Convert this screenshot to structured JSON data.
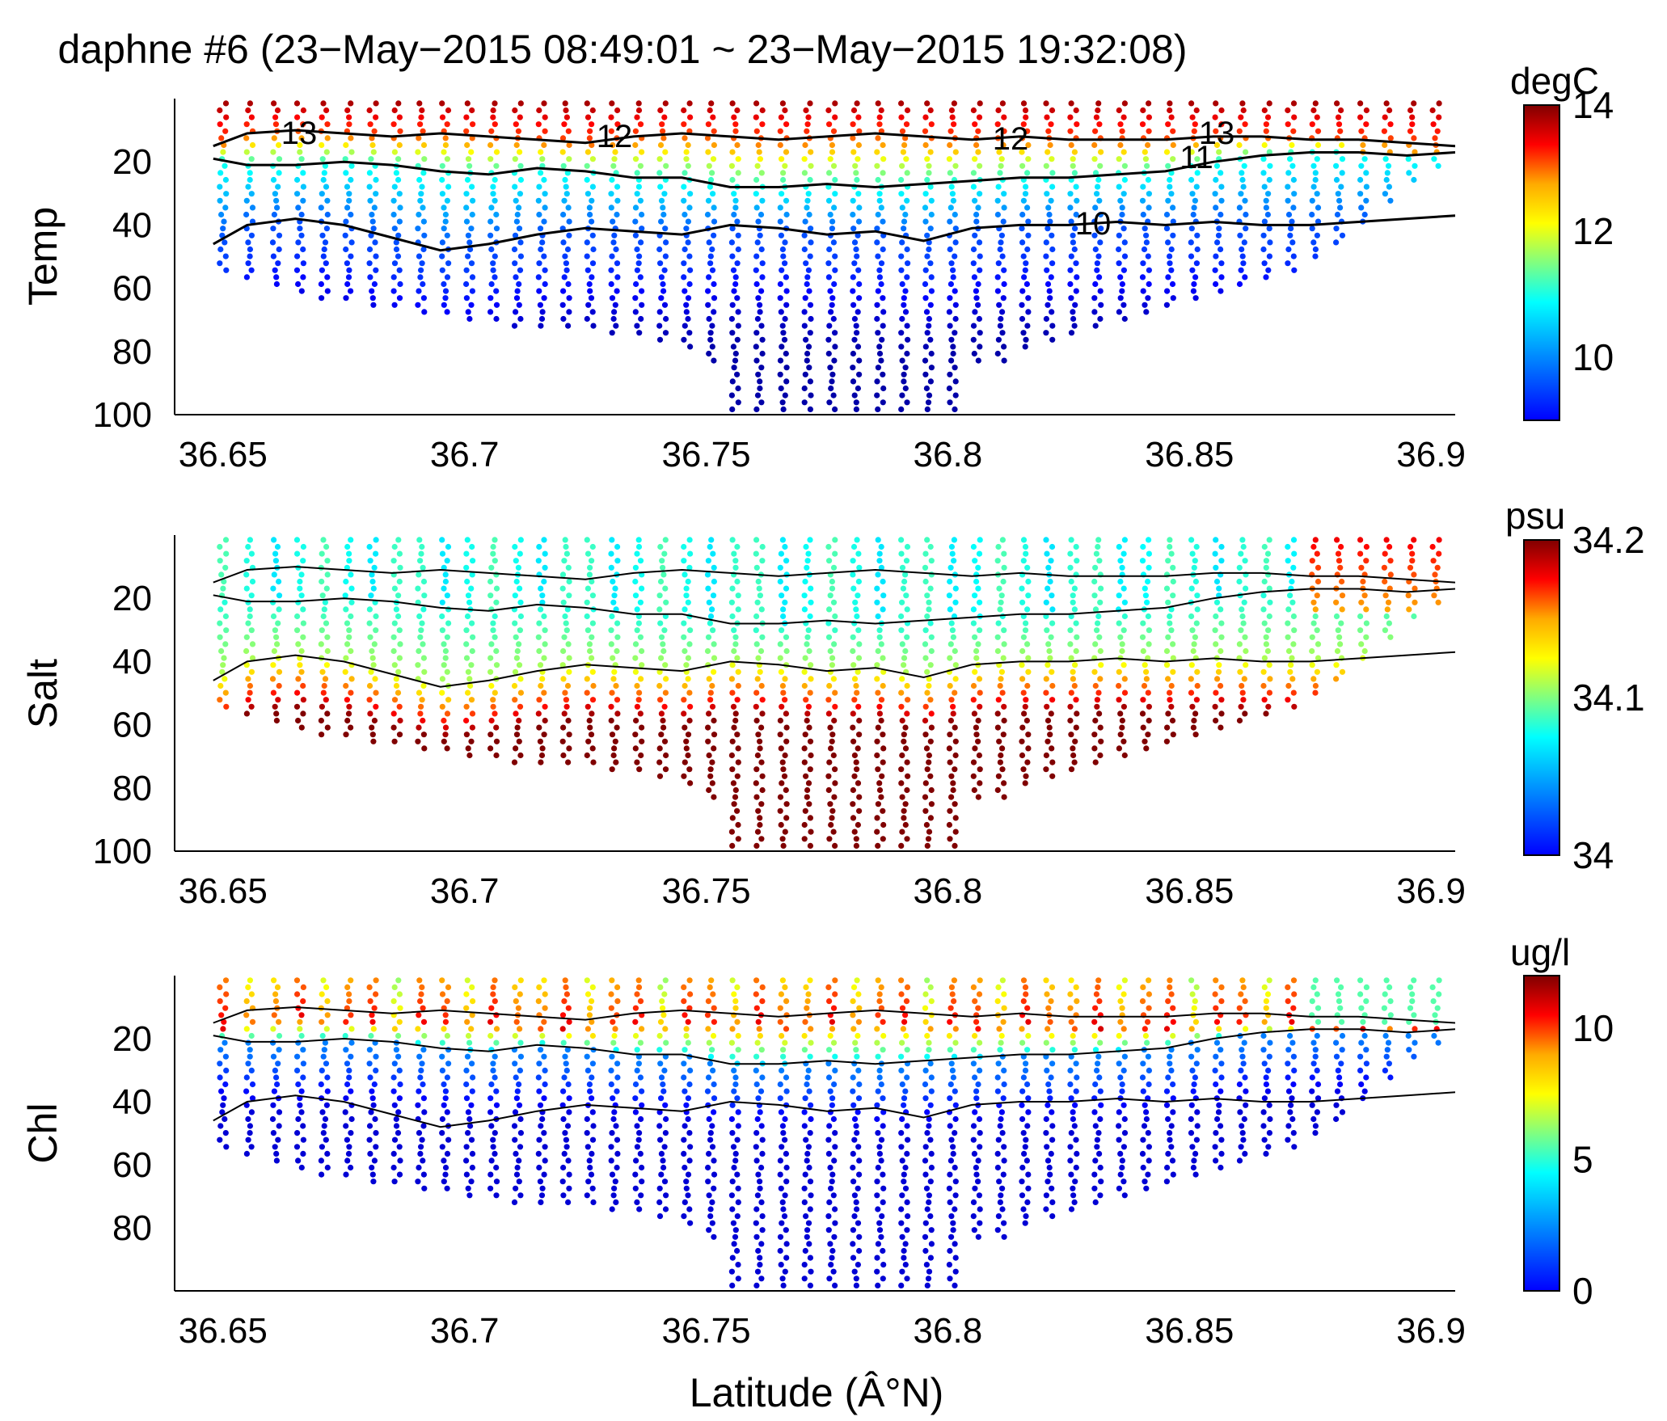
{
  "title": "daphne #6 (23−May−2015 08:49:01 ~ 23−May−2015 19:32:08)",
  "xlabel": "Latitude (Â°N)",
  "chart_data": [
    {
      "type": "scatter",
      "variable": "temperature",
      "ylabel": "Temp",
      "xlim": [
        36.64,
        36.905
      ],
      "ylim": [
        0,
        100
      ],
      "y_reversed": true,
      "x_ticks": [
        "36.65",
        "36.7",
        "36.75",
        "36.8",
        "36.85",
        "36.9"
      ],
      "x_tick_values": [
        36.65,
        36.7,
        36.75,
        36.8,
        36.85,
        36.9
      ],
      "y_ticks": [
        "20",
        "40",
        "60",
        "80",
        "100"
      ],
      "y_tick_values": [
        20,
        40,
        60,
        80,
        100
      ],
      "colorbar": {
        "unit": "degC",
        "min": 9,
        "max": 14,
        "ticks": [
          "10",
          "12",
          "14"
        ],
        "tick_values": [
          10,
          12,
          14
        ],
        "colormap": "jet"
      },
      "contour_levels": [
        "13",
        "12",
        "12",
        "13",
        "11",
        "10"
      ]
    },
    {
      "type": "scatter",
      "variable": "salinity",
      "ylabel": "Salt",
      "xlim": [
        36.64,
        36.905
      ],
      "ylim": [
        0,
        100
      ],
      "y_reversed": true,
      "x_ticks": [
        "36.65",
        "36.7",
        "36.75",
        "36.8",
        "36.85",
        "36.9"
      ],
      "x_tick_values": [
        36.65,
        36.7,
        36.75,
        36.8,
        36.85,
        36.9
      ],
      "y_ticks": [
        "20",
        "40",
        "60",
        "80",
        "100"
      ],
      "y_tick_values": [
        20,
        40,
        60,
        80,
        100
      ],
      "colorbar": {
        "unit": "psu",
        "min": 34,
        "max": 34.2,
        "ticks": [
          "34",
          "34.1",
          "34.2"
        ],
        "tick_values": [
          34,
          34.1,
          34.2
        ],
        "colormap": "jet"
      }
    },
    {
      "type": "scatter",
      "variable": "chlorophyll",
      "ylabel": "Chl",
      "xlim": [
        36.64,
        36.905
      ],
      "ylim": [
        0,
        100
      ],
      "y_reversed": true,
      "x_ticks": [
        "36.65",
        "36.7",
        "36.75",
        "36.8",
        "36.85",
        "36.9"
      ],
      "x_tick_values": [
        36.65,
        36.7,
        36.75,
        36.8,
        36.85,
        36.9
      ],
      "y_ticks": [
        "20",
        "40",
        "60",
        "80"
      ],
      "y_tick_values": [
        20,
        40,
        60,
        80
      ],
      "colorbar": {
        "unit": "ug/l",
        "min": 0,
        "max": 12,
        "ticks": [
          "0",
          "5",
          "10"
        ],
        "tick_values": [
          0,
          5,
          10
        ],
        "colormap": "jet"
      }
    }
  ],
  "profiles": {
    "lat": [
      36.65,
      36.6555,
      36.661,
      36.666,
      36.671,
      36.676,
      36.681,
      36.686,
      36.691,
      36.696,
      36.701,
      36.706,
      36.711,
      36.716,
      36.721,
      36.726,
      36.731,
      36.736,
      36.741,
      36.746,
      36.751,
      36.756,
      36.761,
      36.766,
      36.771,
      36.776,
      36.781,
      36.786,
      36.791,
      36.796,
      36.801,
      36.806,
      36.811,
      36.816,
      36.821,
      36.826,
      36.831,
      36.836,
      36.841,
      36.846,
      36.851,
      36.856,
      36.861,
      36.866,
      36.871,
      36.876,
      36.881,
      36.886,
      36.891,
      36.896,
      36.901
    ],
    "max_depth": [
      55,
      58,
      60,
      62,
      64,
      65,
      66,
      67,
      68,
      69,
      70,
      71,
      72,
      73,
      74,
      74,
      75,
      76,
      78,
      80,
      83,
      100,
      100,
      100,
      100,
      100,
      100,
      100,
      100,
      100,
      100,
      85,
      83,
      80,
      78,
      75,
      72,
      70,
      68,
      66,
      64,
      62,
      60,
      57,
      55,
      52,
      47,
      40,
      33,
      27,
      22
    ]
  },
  "contours": {
    "lat": [
      36.648,
      36.655,
      36.665,
      36.675,
      36.685,
      36.695,
      36.705,
      36.715,
      36.725,
      36.735,
      36.745,
      36.755,
      36.765,
      36.775,
      36.785,
      36.795,
      36.805,
      36.815,
      36.825,
      36.835,
      36.845,
      36.855,
      36.865,
      36.875,
      36.885,
      36.895,
      36.905
    ],
    "levels": [
      {
        "label": "13",
        "depth": [
          15,
          11,
          10,
          11,
          12,
          11,
          12,
          13,
          14,
          12,
          11,
          12,
          13,
          12,
          11,
          12,
          13,
          12,
          13,
          13,
          13,
          12,
          12,
          13,
          13,
          14,
          15
        ]
      },
      {
        "label": "11",
        "depth": [
          19,
          21,
          21,
          20,
          21,
          23,
          24,
          22,
          23,
          25,
          25,
          28,
          28,
          27,
          28,
          27,
          26,
          25,
          25,
          24,
          23,
          20,
          18,
          17,
          17,
          18,
          17
        ]
      },
      {
        "label": "10",
        "depth": [
          46,
          40,
          38,
          40,
          44,
          48,
          46,
          43,
          41,
          42,
          43,
          40,
          41,
          43,
          42,
          45,
          41,
          40,
          40,
          39,
          40,
          39,
          40,
          40,
          39,
          38,
          37
        ]
      }
    ]
  }
}
